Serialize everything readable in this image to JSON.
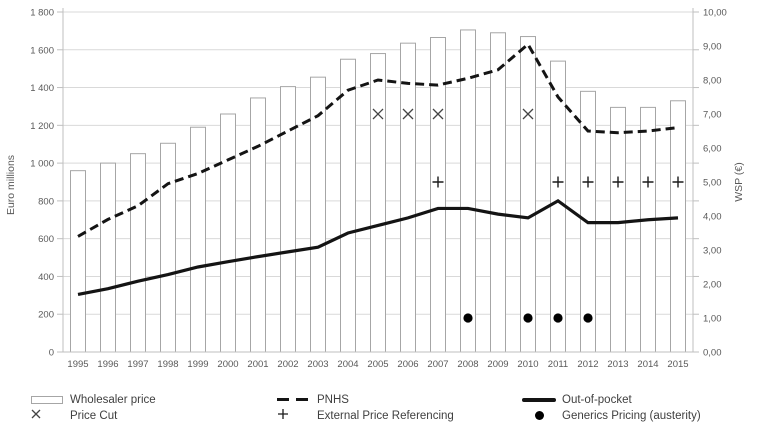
{
  "chart_data": {
    "type": "combo",
    "title": "",
    "categories": [
      "1995",
      "1996",
      "1997",
      "1998",
      "1999",
      "2000",
      "2001",
      "2002",
      "2003",
      "2004",
      "2005",
      "2006",
      "2007",
      "2008",
      "2009",
      "2010",
      "2011",
      "2012",
      "2013",
      "2014",
      "2015"
    ],
    "series": [
      {
        "name": "Wholesaler price",
        "type": "bar",
        "axis": "left",
        "unit": "Euro millions",
        "values": [
          960,
          1000,
          1050,
          1105,
          1190,
          1260,
          1345,
          1405,
          1455,
          1550,
          1580,
          1635,
          1665,
          1705,
          1690,
          1670,
          1540,
          1380,
          1295,
          1295,
          1330
        ]
      },
      {
        "name": "PNHS",
        "type": "line",
        "style": "dashed",
        "axis": "right",
        "unit": "WSP (€)",
        "values": [
          3.4,
          3.9,
          4.3,
          4.95,
          5.25,
          5.65,
          6.05,
          6.5,
          6.95,
          7.7,
          8.0,
          7.9,
          7.85,
          8.05,
          8.3,
          9.05,
          7.5,
          6.5,
          6.45,
          6.5,
          6.6
        ]
      },
      {
        "name": "Out-of-pocket",
        "type": "line",
        "style": "solid",
        "axis": "left",
        "unit": "Euro millions",
        "values": [
          305,
          335,
          375,
          410,
          450,
          478,
          505,
          530,
          555,
          630,
          670,
          710,
          760,
          760,
          730,
          710,
          800,
          685,
          685,
          700,
          710
        ]
      }
    ],
    "event_markers": [
      {
        "name": "Price Cut",
        "symbol": "x",
        "axis": "right",
        "y_value": 7.0,
        "years": [
          2005,
          2006,
          2007,
          2010
        ]
      },
      {
        "name": "External Price Referencing",
        "symbol": "plus",
        "axis": "right",
        "y_value": 5.0,
        "years": [
          2007,
          2011,
          2012,
          2013,
          2014,
          2015
        ]
      },
      {
        "name": "Generics Pricing (austerity)",
        "symbol": "dot",
        "axis": "right",
        "y_value": 1.0,
        "years": [
          2008,
          2010,
          2011,
          2012
        ]
      }
    ],
    "left_axis": {
      "label": "Euro millions",
      "min": 0,
      "max": 1800,
      "step": 200,
      "tick_labels": [
        "0",
        "200",
        "400",
        "600",
        "800",
        "1 000",
        "1 200",
        "1 400",
        "1 600",
        "1 800"
      ]
    },
    "right_axis": {
      "label": "WSP (€)",
      "min": 0,
      "max": 10,
      "step": 1,
      "tick_labels": [
        "0,00",
        "1,00",
        "2,00",
        "3,00",
        "4,00",
        "5,00",
        "6,00",
        "7,00",
        "8,00",
        "9,00",
        "10,00"
      ]
    },
    "legend_position": "bottom",
    "grid": true,
    "colors": {
      "line": "#141414",
      "bar_fill": "#ffffff",
      "bar_border": "#a6a6a6",
      "grid": "#d9d9d9",
      "axis_line": "#bfbfbf",
      "axis_text": "#595959",
      "x_marker": "#444444",
      "plus_marker": "#1a1a1a",
      "dot_marker": "#000000"
    }
  }
}
